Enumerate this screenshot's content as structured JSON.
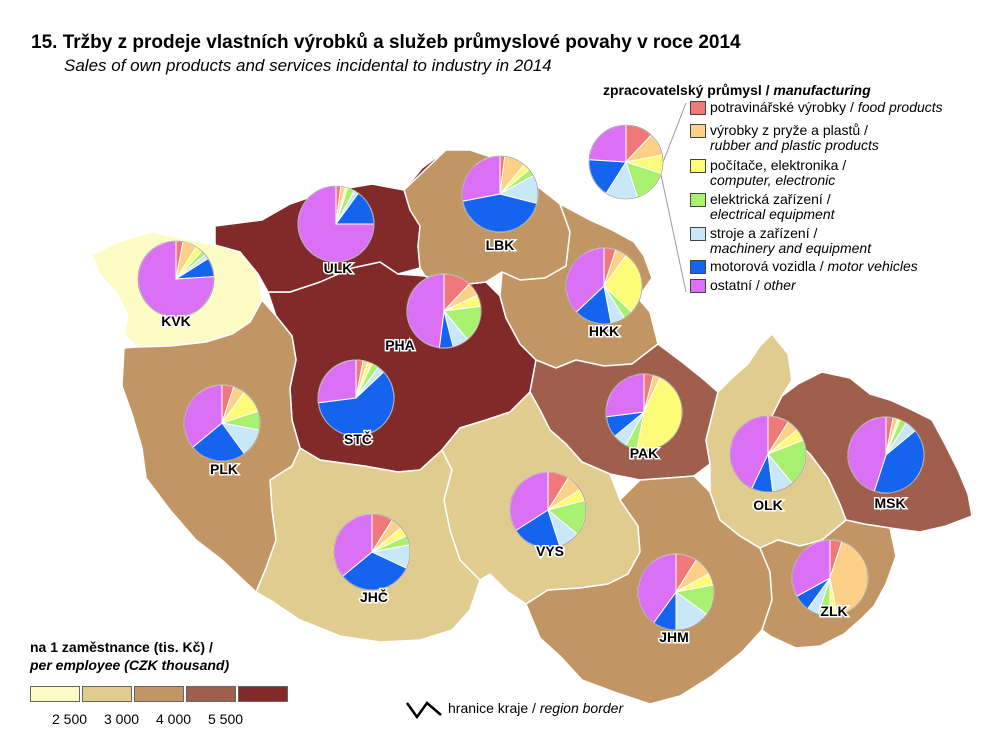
{
  "title": "15. Tržby z prodeje vlastních výrobků a služeb průmyslové povahy v roce 2014",
  "subtitle": "Sales of own products and services incidental to industry in 2014",
  "pie_legend": {
    "title_cz": "zpracovatelský průmysl /",
    "title_en": "manufacturing",
    "items": [
      {
        "cz": "potravinářské výrobky /",
        "en": "food products",
        "color": "#f07878"
      },
      {
        "cz": "výrobky z pryže a plastů /",
        "en": "rubber and plastic products",
        "color": "#fcd086"
      },
      {
        "cz": "počítače, elektronika /",
        "en": "computer, electronic",
        "color": "#fcfc78"
      },
      {
        "cz": "elektrická zařízení /",
        "en": "electrical equipment",
        "color": "#a8f070"
      },
      {
        "cz": "stroje a zařízení /",
        "en": "machinery and equipment",
        "color": "#c8e8f8"
      },
      {
        "cz": "motorová vozidla /",
        "en": "motor vehicles",
        "color": "#1464f0"
      },
      {
        "cz": "ostatní /",
        "en": "other",
        "color": "#dc70f4"
      }
    ]
  },
  "choropleth_legend": {
    "title_cz": "na 1 zaměstnance (tis. Kč) /",
    "title_en": "per employee (CZK thousand)",
    "classes": [
      "#fdfbc4",
      "#e0cc8e",
      "#c29664",
      "#a05e4c",
      "#822a2a"
    ],
    "breaks": [
      "2 500",
      "3 000",
      "4 000",
      "5 500"
    ]
  },
  "border_legend": {
    "cz": "hranice kraje /",
    "en": "region border"
  },
  "chart_data": {
    "type": "pie",
    "series_order": [
      "food products",
      "rubber and plastic products",
      "computer, electronic",
      "electrical equipment",
      "machinery and equipment",
      "motor vehicles",
      "other"
    ],
    "regions": [
      {
        "code": "PHA",
        "class": 4,
        "shares": [
          12,
          6,
          5,
          16,
          7,
          6,
          48
        ]
      },
      {
        "code": "STČ",
        "class": 5,
        "shares": [
          3,
          2,
          2,
          3,
          3,
          60,
          27
        ]
      },
      {
        "code": "JHČ",
        "class": 2,
        "shares": [
          9,
          5,
          4,
          4,
          10,
          32,
          36
        ]
      },
      {
        "code": "PLK",
        "class": 3,
        "shares": [
          5,
          5,
          10,
          8,
          12,
          24,
          36
        ]
      },
      {
        "code": "KVK",
        "class": 1,
        "shares": [
          3,
          6,
          3,
          2,
          2,
          8,
          76
        ]
      },
      {
        "code": "ULK",
        "class": 5,
        "shares": [
          2,
          2,
          1,
          3,
          2,
          15,
          75
        ]
      },
      {
        "code": "LBK",
        "class": 3,
        "shares": [
          2,
          9,
          3,
          3,
          12,
          43,
          28
        ]
      },
      {
        "code": "HKK",
        "class": 3,
        "shares": [
          5,
          5,
          27,
          4,
          6,
          16,
          37
        ]
      },
      {
        "code": "PAK",
        "class": 4,
        "shares": [
          4,
          3,
          46,
          5,
          6,
          9,
          27
        ]
      },
      {
        "code": "VYS",
        "class": 2,
        "shares": [
          9,
          7,
          5,
          15,
          9,
          21,
          34
        ]
      },
      {
        "code": "JHM",
        "class": 3,
        "shares": [
          9,
          8,
          5,
          13,
          15,
          10,
          40
        ]
      },
      {
        "code": "OLK",
        "class": 2,
        "shares": [
          9,
          5,
          5,
          20,
          9,
          9,
          43
        ]
      },
      {
        "code": "MSK",
        "class": 4,
        "shares": [
          3,
          2,
          1,
          3,
          5,
          41,
          45
        ]
      },
      {
        "code": "ZLK",
        "class": 3,
        "shares": [
          5,
          42,
          3,
          5,
          5,
          7,
          33
        ]
      }
    ]
  }
}
